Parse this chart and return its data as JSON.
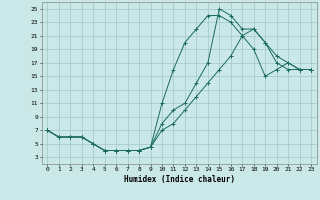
{
  "xlabel": "Humidex (Indice chaleur)",
  "background_color": "#cbe8e8",
  "grid_color": "#a8cccc",
  "line_color": "#1a6b5a",
  "xlim": [
    -0.5,
    23.5
  ],
  "ylim": [
    2,
    26
  ],
  "xticks": [
    0,
    1,
    2,
    3,
    4,
    5,
    6,
    7,
    8,
    9,
    10,
    11,
    12,
    13,
    14,
    15,
    16,
    17,
    18,
    19,
    20,
    21,
    22,
    23
  ],
  "yticks": [
    3,
    5,
    7,
    9,
    11,
    13,
    15,
    17,
    19,
    21,
    23,
    25
  ],
  "line1_x": [
    0,
    1,
    2,
    3,
    4,
    5,
    6,
    7,
    8,
    9,
    10,
    11,
    12,
    13,
    14,
    15,
    16,
    17,
    18,
    19,
    20,
    21,
    22,
    23
  ],
  "line1_y": [
    7,
    6,
    6,
    6,
    5,
    4,
    4,
    4,
    4,
    4.5,
    11,
    16,
    20,
    22,
    24,
    24,
    23,
    21,
    22,
    20,
    17,
    16,
    16,
    16
  ],
  "line2_x": [
    0,
    1,
    2,
    3,
    4,
    5,
    6,
    7,
    8,
    9,
    10,
    11,
    12,
    13,
    14,
    15,
    16,
    17,
    18,
    19,
    20,
    21,
    22,
    23
  ],
  "line2_y": [
    7,
    6,
    6,
    6,
    5,
    4,
    4,
    4,
    4,
    4.5,
    7,
    8,
    10,
    12,
    14,
    16,
    18,
    21,
    19,
    15,
    16,
    17,
    16,
    16
  ],
  "line3_x": [
    0,
    1,
    2,
    3,
    4,
    5,
    6,
    7,
    8,
    9,
    10,
    11,
    12,
    13,
    14,
    15,
    16,
    17,
    18,
    19,
    20,
    21,
    22,
    23
  ],
  "line3_y": [
    7,
    6,
    6,
    6,
    5,
    4,
    4,
    4,
    4,
    4.5,
    8,
    10,
    11,
    14,
    17,
    25,
    24,
    22,
    22,
    20,
    18,
    17,
    16,
    16
  ],
  "figsize": [
    3.2,
    2.0
  ],
  "dpi": 100
}
